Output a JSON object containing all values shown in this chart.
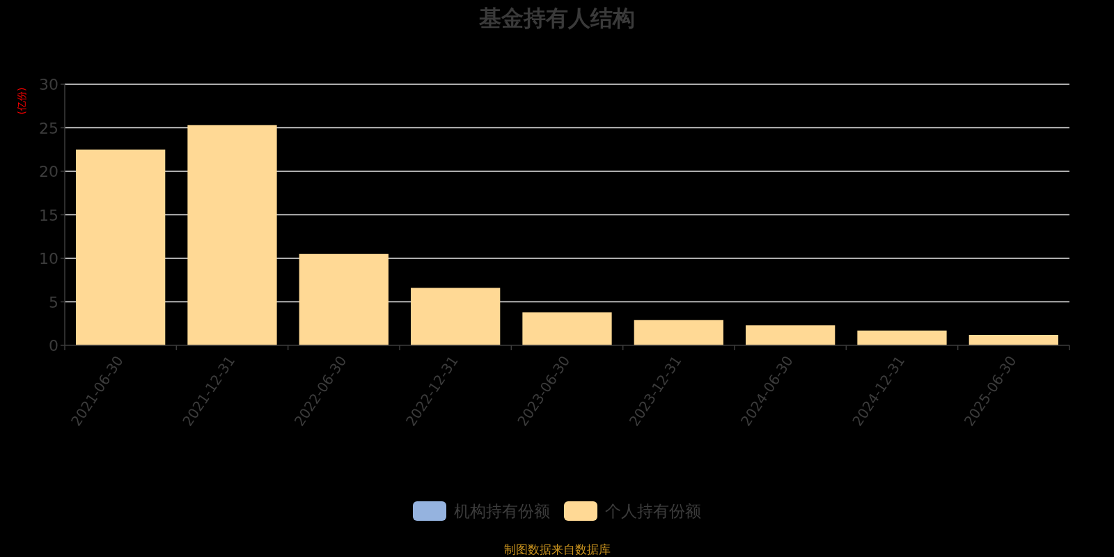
{
  "chart_data": {
    "type": "bar",
    "title": "基金持有人结构",
    "ylabel": "(亿份)",
    "categories": [
      "2021-06-30",
      "2021-12-31",
      "2022-06-30",
      "2022-12-31",
      "2023-06-30",
      "2023-12-31",
      "2024-06-30",
      "2024-12-31",
      "2025-06-30"
    ],
    "series": [
      {
        "name": "机构持有份额",
        "color": "#95b3df",
        "values": [
          0,
          0,
          0,
          0,
          0,
          0,
          0,
          0,
          0
        ]
      },
      {
        "name": "个人持有份额",
        "color": "#ffd995",
        "values": [
          22.5,
          25.3,
          10.5,
          6.6,
          3.8,
          2.9,
          2.3,
          1.7,
          1.2
        ]
      }
    ],
    "stacked": true,
    "ylim": [
      0,
      30
    ],
    "yticks": [
      0,
      5,
      10,
      15,
      20,
      25,
      30
    ],
    "grid": "y",
    "legend": "bottom",
    "annotations": [
      "制图数据来自数据库"
    ]
  }
}
